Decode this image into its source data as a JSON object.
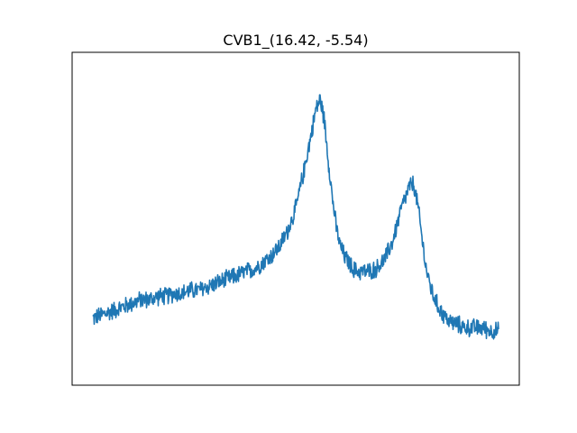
{
  "chart_data": {
    "type": "line",
    "title": "CVB1_(16.42, -5.54)",
    "xlabel": "",
    "ylabel": "",
    "x_ticks_visible": false,
    "y_ticks_visible": false,
    "xlim": [
      0,
      1
    ],
    "ylim": [
      0,
      1
    ],
    "grid": false,
    "legend": "none",
    "series": [
      {
        "color": "#1f77b4",
        "x": [
          0.0,
          0.02,
          0.04,
          0.06,
          0.08,
          0.1,
          0.12,
          0.14,
          0.16,
          0.18,
          0.2,
          0.22,
          0.24,
          0.26,
          0.28,
          0.3,
          0.32,
          0.34,
          0.36,
          0.38,
          0.4,
          0.42,
          0.44,
          0.46,
          0.48,
          0.5,
          0.52,
          0.54,
          0.55,
          0.56,
          0.57,
          0.58,
          0.59,
          0.6,
          0.61,
          0.62,
          0.63,
          0.64,
          0.65,
          0.66,
          0.68,
          0.7,
          0.72,
          0.74,
          0.76,
          0.78,
          0.79,
          0.8,
          0.81,
          0.82,
          0.83,
          0.84,
          0.85,
          0.86,
          0.87,
          0.88,
          0.9,
          0.92,
          0.94,
          0.96,
          0.98,
          1.0
        ],
        "y": [
          0.15,
          0.16,
          0.17,
          0.18,
          0.19,
          0.2,
          0.21,
          0.21,
          0.22,
          0.22,
          0.23,
          0.23,
          0.24,
          0.24,
          0.25,
          0.26,
          0.27,
          0.28,
          0.29,
          0.3,
          0.31,
          0.33,
          0.35,
          0.38,
          0.43,
          0.5,
          0.62,
          0.75,
          0.82,
          0.85,
          0.79,
          0.66,
          0.54,
          0.44,
          0.38,
          0.35,
          0.33,
          0.31,
          0.3,
          0.3,
          0.3,
          0.31,
          0.34,
          0.4,
          0.5,
          0.57,
          0.58,
          0.52,
          0.42,
          0.32,
          0.26,
          0.22,
          0.19,
          0.17,
          0.15,
          0.14,
          0.13,
          0.12,
          0.12,
          0.12,
          0.11,
          0.11
        ],
        "noise": 0.025
      }
    ]
  }
}
